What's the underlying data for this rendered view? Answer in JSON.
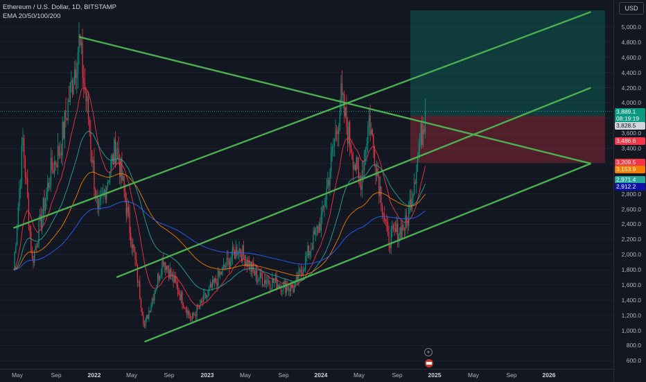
{
  "legend": {
    "symbol": "Ethereum / U.S. Dollar, 1D, BITSTAMP",
    "indicator": "EMA 20/50/100/200"
  },
  "price_scale": {
    "currency_button": "USD",
    "labels": [
      "5,000.0",
      "4,800.0",
      "4,600.0",
      "4,400.0",
      "4,200.0",
      "4,000.0",
      "3,600.0",
      "3,400.0",
      "2,800.0",
      "2,600.0",
      "2,400.0",
      "2,200.0",
      "2,000.0",
      "1,800.0",
      "1,600.0",
      "1,400.0",
      "1,200.0",
      "1,000.0",
      "800.0",
      "600.0"
    ],
    "tags": [
      {
        "text": "3,889.1",
        "sub": "08:19:19",
        "color": "#089981"
      },
      {
        "text": "3,828.5",
        "color": "#d1d4dc",
        "text_color": "#131722"
      },
      {
        "text": "3,486.6",
        "color": "#f23645"
      },
      {
        "text": "3,209.5",
        "color": "#f23645"
      },
      {
        "text": "3,153.9",
        "color": "#f57c00"
      },
      {
        "text": "2,971.4",
        "color": "#26a69a"
      },
      {
        "text": "2,912.2",
        "color": "#0c10a8"
      }
    ]
  },
  "time_scale": {
    "labels": [
      {
        "text": "May",
        "bold": false
      },
      {
        "text": "Sep",
        "bold": false
      },
      {
        "text": "2022",
        "bold": true
      },
      {
        "text": "May",
        "bold": false
      },
      {
        "text": "Sep",
        "bold": false
      },
      {
        "text": "2023",
        "bold": true
      },
      {
        "text": "May",
        "bold": false
      },
      {
        "text": "Sep",
        "bold": false
      },
      {
        "text": "2024",
        "bold": true
      },
      {
        "text": "May",
        "bold": false
      },
      {
        "text": "Sep",
        "bold": false
      },
      {
        "text": "2025",
        "bold": true
      },
      {
        "text": "May",
        "bold": false
      },
      {
        "text": "Sep",
        "bold": false
      },
      {
        "text": "2026",
        "bold": true
      }
    ]
  },
  "chart_data": {
    "type": "candlestick",
    "symbol": "ETHUSD",
    "timeframe": "1D",
    "exchange": "BITSTAMP",
    "y_range": [
      600,
      5200
    ],
    "price_path": [
      {
        "date": "2021-04",
        "price": 1800
      },
      {
        "date": "2021-05",
        "price": 3500
      },
      {
        "date": "2021-06",
        "price": 1900
      },
      {
        "date": "2021-08",
        "price": 3100
      },
      {
        "date": "2021-09",
        "price": 3400
      },
      {
        "date": "2021-11",
        "price": 4800
      },
      {
        "date": "2021-12",
        "price": 3800
      },
      {
        "date": "2022-01",
        "price": 2500
      },
      {
        "date": "2022-03",
        "price": 3450
      },
      {
        "date": "2022-05",
        "price": 1900
      },
      {
        "date": "2022-06",
        "price": 1050
      },
      {
        "date": "2022-08",
        "price": 1950
      },
      {
        "date": "2022-11",
        "price": 1150
      },
      {
        "date": "2023-04",
        "price": 2100
      },
      {
        "date": "2023-06",
        "price": 1700
      },
      {
        "date": "2023-10",
        "price": 1550
      },
      {
        "date": "2024-01",
        "price": 2500
      },
      {
        "date": "2024-03",
        "price": 4050
      },
      {
        "date": "2024-05",
        "price": 2900
      },
      {
        "date": "2024-06",
        "price": 3800
      },
      {
        "date": "2024-08",
        "price": 2200
      },
      {
        "date": "2024-10",
        "price": 2400
      },
      {
        "date": "2024-12",
        "price": 3889
      }
    ],
    "trendlines": [
      {
        "from": {
          "date": "2021-11",
          "price": 4870
        },
        "to": {
          "date": "2026-04",
          "price": 3200
        }
      },
      {
        "from": {
          "date": "2021-04",
          "price": 2350
        },
        "to": {
          "date": "2026-04",
          "price": 5200
        }
      },
      {
        "from": {
          "date": "2022-03",
          "price": 1700
        },
        "to": {
          "date": "2026-04",
          "price": 4200
        }
      },
      {
        "from": {
          "date": "2022-06",
          "price": 850
        },
        "to": {
          "date": "2026-04",
          "price": 3200
        }
      }
    ],
    "position": {
      "type": "long",
      "entry": 3828.5,
      "target": 5200,
      "stop": 3209.5
    },
    "current_price": 3889.1
  },
  "colors": {
    "background": "#131722",
    "up": "#089981",
    "down": "#f23645",
    "trendline": "#4caf50",
    "ema20": "#f23645",
    "ema50": "#26a69a",
    "ema100": "#f57c00",
    "ema200": "#2962ff"
  }
}
